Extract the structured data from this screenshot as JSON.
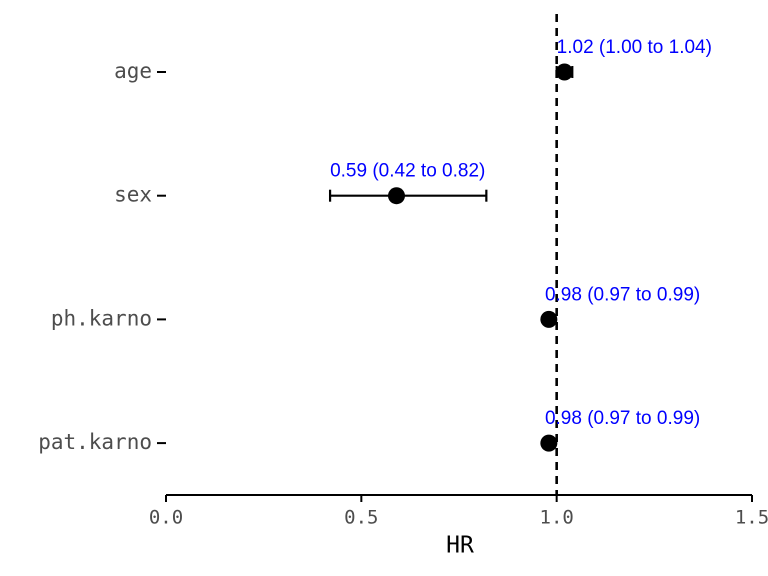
{
  "chart_data": {
    "type": "forest",
    "xlabel": "HR",
    "ylabel": "",
    "xlim": [
      0,
      1.5
    ],
    "xticks": [
      0,
      0.5,
      1,
      1.5
    ],
    "xtick_labels": [
      "0.0",
      "0.5",
      "1.0",
      "1.5"
    ],
    "reference_line": 1.0,
    "grid": false,
    "rows": [
      {
        "variable": "age",
        "hr": 1.02,
        "lower": 1.0,
        "upper": 1.04,
        "label": "1.02 (1.00 to 1.04)"
      },
      {
        "variable": "sex",
        "hr": 0.59,
        "lower": 0.42,
        "upper": 0.82,
        "label": "0.59 (0.42 to 0.82)"
      },
      {
        "variable": "ph.karno",
        "hr": 0.98,
        "lower": 0.97,
        "upper": 0.99,
        "label": "0.98 (0.97 to 0.99)"
      },
      {
        "variable": "pat.karno",
        "hr": 0.98,
        "lower": 0.97,
        "upper": 0.99,
        "label": "0.98 (0.97 to 0.99)"
      }
    ]
  },
  "colors": {
    "label": "#0000ff",
    "point": "#000000",
    "axis": "#000000",
    "reference": "#000000"
  }
}
